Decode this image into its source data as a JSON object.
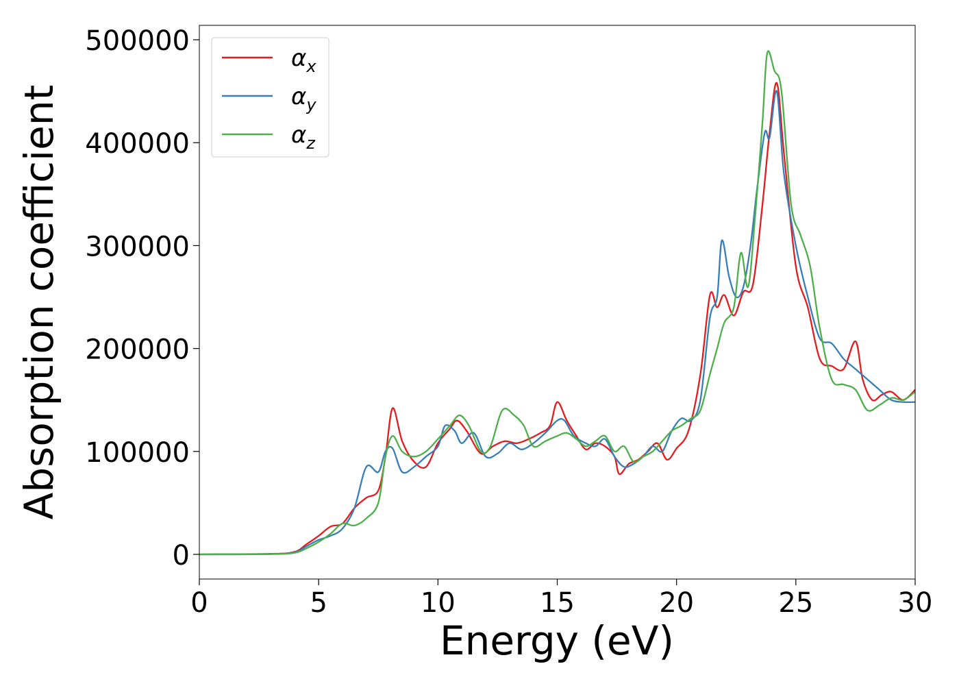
{
  "chart_data": {
    "type": "line",
    "xlabel": "Energy (eV)",
    "ylabel": "Absorption coefficient",
    "xlim": [
      0,
      30
    ],
    "ylim": [
      -24000,
      514000
    ],
    "xticks": [
      0,
      5,
      10,
      15,
      20,
      25,
      30
    ],
    "yticks": [
      0,
      100000,
      200000,
      300000,
      400000,
      500000
    ],
    "grid": false,
    "legend_position": "top-left",
    "series": [
      {
        "name": "α",
        "subscript": "x",
        "color": "#e41a1c",
        "x": [
          0,
          3.0,
          4.0,
          4.5,
          5.0,
          5.5,
          6.0,
          6.5,
          7.0,
          7.5,
          7.8,
          8.1,
          8.5,
          9.0,
          9.5,
          10.0,
          10.5,
          10.8,
          11.2,
          11.8,
          12.3,
          12.8,
          13.3,
          13.8,
          14.3,
          14.7,
          15.0,
          15.4,
          15.8,
          16.2,
          16.6,
          17.0,
          17.4,
          17.6,
          18.0,
          18.4,
          18.8,
          19.2,
          19.6,
          20.0,
          20.5,
          21.0,
          21.4,
          21.7,
          22.0,
          22.4,
          22.8,
          23.2,
          23.6,
          23.9,
          24.2,
          24.5,
          25.0,
          25.5,
          26.0,
          26.5,
          27.0,
          27.5,
          27.8,
          28.2,
          28.6,
          29.0,
          29.5,
          30.0
        ],
        "y": [
          0,
          500,
          2500,
          10000,
          18000,
          27000,
          30000,
          45000,
          55000,
          62000,
          95000,
          142000,
          110000,
          90000,
          85000,
          108000,
          122000,
          130000,
          120000,
          98000,
          105000,
          110000,
          108000,
          112000,
          118000,
          125000,
          148000,
          130000,
          115000,
          102000,
          108000,
          105000,
          95000,
          78000,
          88000,
          92000,
          100000,
          108000,
          92000,
          103000,
          120000,
          175000,
          252000,
          240000,
          252000,
          232000,
          255000,
          262000,
          340000,
          410000,
          458000,
          390000,
          280000,
          240000,
          190000,
          183000,
          180000,
          207000,
          170000,
          150000,
          155000,
          158000,
          150000,
          160000
        ]
      },
      {
        "name": "α",
        "subscript": "y",
        "color": "#377eb8",
        "x": [
          0,
          3.0,
          4.0,
          4.5,
          5.0,
          5.5,
          6.0,
          6.5,
          7.0,
          7.5,
          7.8,
          8.1,
          8.5,
          9.0,
          9.5,
          10.0,
          10.3,
          10.7,
          11.0,
          11.5,
          12.0,
          12.5,
          13.0,
          13.5,
          14.0,
          14.5,
          15.0,
          15.3,
          15.7,
          16.2,
          16.6,
          17.0,
          17.4,
          17.8,
          18.2,
          18.6,
          19.0,
          19.4,
          19.8,
          20.2,
          20.6,
          21.0,
          21.4,
          21.7,
          21.9,
          22.2,
          22.5,
          22.8,
          23.1,
          23.4,
          23.7,
          23.9,
          24.2,
          24.5,
          25.0,
          25.5,
          26.0,
          26.5,
          27.0,
          27.5,
          28.0,
          28.5,
          29.0,
          29.5,
          30.0
        ],
        "y": [
          0,
          300,
          2000,
          8000,
          14000,
          18000,
          25000,
          45000,
          85000,
          80000,
          100000,
          103000,
          80000,
          85000,
          95000,
          105000,
          125000,
          120000,
          108000,
          118000,
          95000,
          98000,
          108000,
          102000,
          108000,
          118000,
          130000,
          130000,
          115000,
          108000,
          105000,
          112000,
          95000,
          85000,
          88000,
          95000,
          105000,
          100000,
          120000,
          132000,
          130000,
          150000,
          230000,
          250000,
          305000,
          270000,
          250000,
          260000,
          300000,
          360000,
          410000,
          405000,
          450000,
          370000,
          300000,
          250000,
          210000,
          205000,
          190000,
          180000,
          170000,
          160000,
          150000,
          148000,
          148000
        ]
      },
      {
        "name": "α",
        "subscript": "z",
        "color": "#4daf4a",
        "x": [
          0,
          3.0,
          4.0,
          4.5,
          5.0,
          5.5,
          6.0,
          6.5,
          7.0,
          7.5,
          7.8,
          8.1,
          8.5,
          9.0,
          9.5,
          10.0,
          10.5,
          10.9,
          11.3,
          11.8,
          12.2,
          12.7,
          13.2,
          13.6,
          14.0,
          14.5,
          15.0,
          15.4,
          15.8,
          16.2,
          16.6,
          17.0,
          17.4,
          17.8,
          18.2,
          18.6,
          19.0,
          19.4,
          19.8,
          20.2,
          20.6,
          21.0,
          21.4,
          21.7,
          22.0,
          22.4,
          22.7,
          23.0,
          23.3,
          23.6,
          23.8,
          24.1,
          24.4,
          24.8,
          25.2,
          25.6,
          26.0,
          26.5,
          27.0,
          27.5,
          28.0,
          28.5,
          29.0,
          29.5,
          30.0
        ],
        "y": [
          0,
          200,
          1500,
          6000,
          12000,
          20000,
          30000,
          28000,
          35000,
          50000,
          95000,
          115000,
          100000,
          95000,
          100000,
          112000,
          125000,
          135000,
          125000,
          100000,
          105000,
          140000,
          135000,
          125000,
          105000,
          110000,
          115000,
          118000,
          112000,
          105000,
          110000,
          115000,
          100000,
          105000,
          90000,
          95000,
          100000,
          110000,
          120000,
          125000,
          132000,
          140000,
          175000,
          200000,
          225000,
          240000,
          293000,
          260000,
          330000,
          420000,
          487000,
          470000,
          450000,
          340000,
          310000,
          280000,
          220000,
          170000,
          165000,
          160000,
          140000,
          145000,
          152000,
          150000,
          158000
        ]
      }
    ]
  }
}
